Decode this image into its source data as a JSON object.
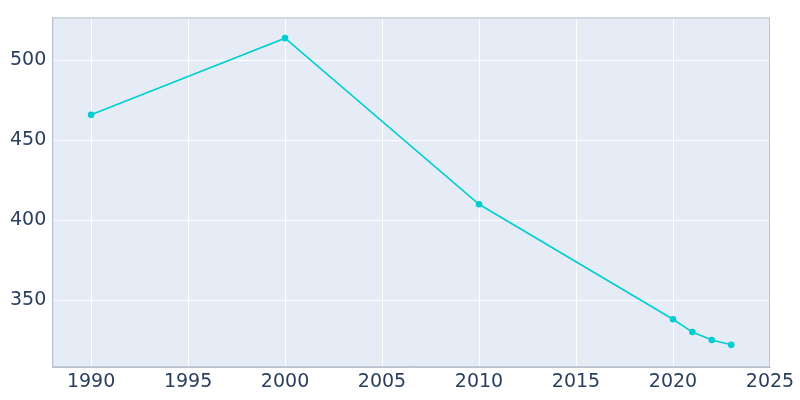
{
  "chart_data": {
    "type": "line",
    "x": [
      1990,
      2000,
      2010,
      2020,
      2021,
      2022,
      2023
    ],
    "values": [
      466,
      514,
      410,
      338,
      330,
      325,
      322
    ],
    "color": "#00ced1",
    "marker": "circle",
    "xlim": [
      1988,
      2025
    ],
    "xticks": [
      1990,
      1995,
      2000,
      2005,
      2010,
      2015,
      2020,
      2025
    ],
    "ylim": [
      308,
      527
    ],
    "yticks": [
      350,
      400,
      450,
      500
    ],
    "grid": true
  }
}
